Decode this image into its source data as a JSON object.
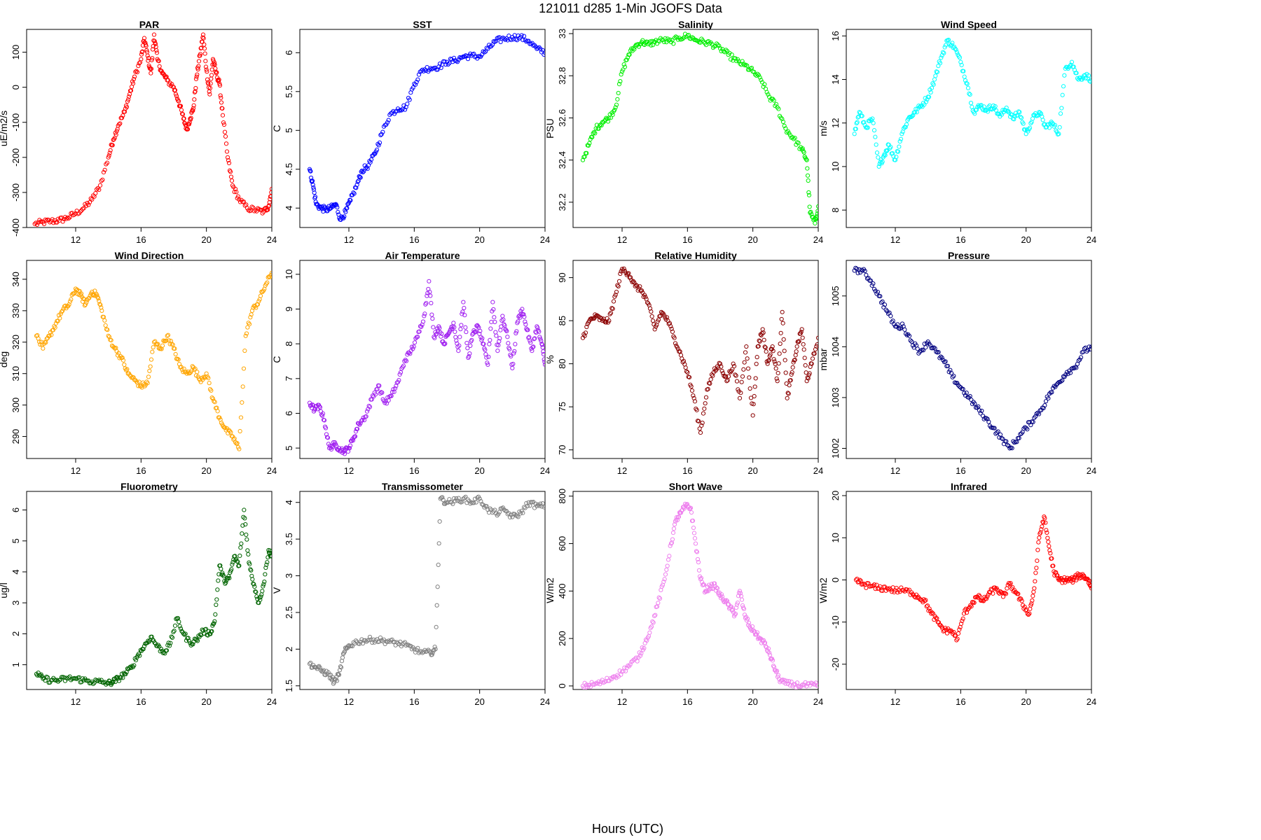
{
  "figure": {
    "title": "121011    d285    1-Min  JGOFS Data",
    "xlabel": "Hours (UTC)"
  },
  "chart_data": [
    {
      "type": "scatter",
      "title": "PAR",
      "ylabel": "uE/m2/s",
      "color": "#ff0000",
      "xlim": [
        9,
        24
      ],
      "ylim": [
        -400,
        165
      ],
      "xticks": [
        12,
        16,
        20,
        24
      ],
      "yticks": [
        -400,
        -300,
        -200,
        -100,
        0,
        100
      ],
      "x": [
        9.5,
        10,
        10.5,
        11,
        11.5,
        12,
        12.5,
        13,
        13.5,
        14,
        14.3,
        14.6,
        15,
        15.3,
        15.6,
        16,
        16.2,
        16.4,
        16.6,
        16.8,
        17,
        17.3,
        17.6,
        18,
        18.3,
        18.6,
        18.8,
        19,
        19.2,
        19.4,
        19.6,
        19.8,
        20,
        20.2,
        20.4,
        20.6,
        20.8,
        21,
        21.3,
        21.6,
        22,
        22.5,
        23,
        23.5,
        23.8,
        24
      ],
      "y": [
        -390,
        -385,
        -382,
        -380,
        -372,
        -360,
        -345,
        -320,
        -280,
        -200,
        -150,
        -110,
        -70,
        -20,
        30,
        80,
        140,
        90,
        40,
        150,
        80,
        40,
        20,
        0,
        -40,
        -90,
        -120,
        -90,
        -60,
        30,
        90,
        150,
        50,
        -20,
        80,
        40,
        10,
        -80,
        -200,
        -280,
        -320,
        -345,
        -350,
        -355,
        -340,
        -290
      ]
    },
    {
      "type": "scatter",
      "title": "SST",
      "ylabel": "C",
      "color": "#0000ff",
      "xlim": [
        9,
        24
      ],
      "ylim": [
        3.75,
        6.3
      ],
      "xticks": [
        12,
        16,
        20,
        24
      ],
      "yticks": [
        4.0,
        4.5,
        5.0,
        5.5,
        6.0
      ],
      "x": [
        9.6,
        9.8,
        10,
        10.3,
        10.6,
        10.9,
        11.2,
        11.5,
        11.8,
        12.1,
        12.5,
        12.8,
        13.2,
        13.6,
        14,
        14.5,
        15,
        15.5,
        16,
        16.5,
        17,
        17.5,
        18,
        18.5,
        19,
        19.5,
        20,
        20.5,
        21,
        21.5,
        22,
        22.5,
        23,
        23.5,
        24
      ],
      "y": [
        4.5,
        4.3,
        4.05,
        4.0,
        3.98,
        4.0,
        4.05,
        3.85,
        3.95,
        4.1,
        4.3,
        4.48,
        4.55,
        4.7,
        4.95,
        5.2,
        5.28,
        5.3,
        5.6,
        5.78,
        5.8,
        5.82,
        5.88,
        5.9,
        5.95,
        5.96,
        5.95,
        6.05,
        6.15,
        6.18,
        6.2,
        6.2,
        6.15,
        6.05,
        6.0
      ]
    },
    {
      "type": "scatter",
      "title": "Salinity",
      "ylabel": "PSU",
      "color": "#00ee00",
      "xlim": [
        9,
        24
      ],
      "ylim": [
        32.08,
        33.02
      ],
      "xticks": [
        12,
        16,
        20,
        24
      ],
      "yticks": [
        32.2,
        32.4,
        32.6,
        32.8,
        33.0
      ],
      "x": [
        9.6,
        10,
        10.4,
        10.8,
        11.2,
        11.6,
        12,
        12.4,
        12.8,
        13.2,
        13.6,
        14,
        14.5,
        15,
        15.5,
        16,
        16.5,
        17,
        17.5,
        18,
        18.5,
        19,
        19.5,
        20,
        20.5,
        21,
        21.5,
        22,
        22.5,
        23,
        23.3,
        23.5,
        23.8,
        24
      ],
      "y": [
        32.4,
        32.48,
        32.55,
        32.58,
        32.6,
        32.65,
        32.82,
        32.9,
        32.94,
        32.96,
        32.95,
        32.96,
        32.97,
        32.96,
        32.98,
        32.99,
        32.97,
        32.96,
        32.95,
        32.93,
        32.9,
        32.87,
        32.85,
        32.82,
        32.78,
        32.7,
        32.65,
        32.55,
        32.5,
        32.45,
        32.4,
        32.15,
        32.1,
        32.18
      ]
    },
    {
      "type": "scatter",
      "title": "Wind Speed",
      "ylabel": "m/s",
      "color": "#00ffff",
      "xlim": [
        9,
        24
      ],
      "ylim": [
        7.2,
        16.3
      ],
      "xticks": [
        12,
        16,
        20,
        24
      ],
      "yticks": [
        8,
        10,
        12,
        14,
        16
      ],
      "x": [
        9.5,
        9.8,
        10.2,
        10.6,
        11,
        11.3,
        11.6,
        12,
        12.4,
        12.8,
        13.2,
        13.6,
        14,
        14.4,
        14.8,
        15.2,
        15.6,
        16,
        16.4,
        16.8,
        17.2,
        17.6,
        18,
        18.4,
        18.8,
        19.2,
        19.6,
        20,
        20.4,
        20.8,
        21.2,
        21.6,
        22,
        22.4,
        22.8,
        23.2,
        23.6,
        24
      ],
      "y": [
        11.5,
        12.5,
        11.8,
        12.2,
        10,
        10.5,
        11,
        10.3,
        11.5,
        12.2,
        12.5,
        12.8,
        13.2,
        14,
        15,
        15.8,
        15.5,
        14.8,
        13.8,
        12.5,
        12.8,
        12.6,
        12.8,
        12.3,
        12.7,
        12.2,
        12.5,
        11.5,
        12.2,
        12.5,
        11.8,
        12.0,
        11.5,
        14.5,
        14.8,
        14,
        14.2,
        14.0
      ]
    },
    {
      "type": "scatter",
      "title": "Wind Direction",
      "ylabel": "deg",
      "color": "#ffa500",
      "xlim": [
        9,
        24
      ],
      "ylim": [
        283,
        346
      ],
      "xticks": [
        12,
        16,
        20,
        24
      ],
      "yticks": [
        290,
        300,
        310,
        320,
        330,
        340
      ],
      "x": [
        9.6,
        10,
        10.4,
        10.8,
        11.2,
        11.6,
        12,
        12.3,
        12.6,
        13,
        13.3,
        13.6,
        14,
        14.4,
        14.8,
        15.2,
        15.6,
        16,
        16.4,
        16.8,
        17.2,
        17.6,
        18,
        18.4,
        18.8,
        19.2,
        19.6,
        20,
        20.4,
        20.8,
        21.2,
        21.6,
        22,
        22.4,
        22.8,
        23.2,
        23.6,
        24
      ],
      "y": [
        322,
        318,
        322,
        326,
        330,
        332,
        337,
        335,
        332,
        336,
        335,
        330,
        322,
        318,
        315,
        310,
        308,
        306,
        307,
        320,
        318,
        322,
        318,
        312,
        310,
        312,
        308,
        310,
        302,
        296,
        292,
        290,
        286,
        322,
        330,
        333,
        338,
        342
      ]
    },
    {
      "type": "scatter",
      "title": "Air Temperature",
      "ylabel": "C",
      "color": "#a020f0",
      "xlim": [
        9,
        24
      ],
      "ylim": [
        4.7,
        10.4
      ],
      "xticks": [
        12,
        16,
        20,
        24
      ],
      "yticks": [
        5,
        6,
        7,
        8,
        9,
        10
      ],
      "x": [
        9.6,
        9.9,
        10.2,
        10.5,
        10.8,
        11.1,
        11.4,
        11.7,
        12,
        12.3,
        12.6,
        13,
        13.4,
        13.8,
        14.2,
        14.6,
        15,
        15.4,
        15.8,
        16.2,
        16.6,
        16.9,
        17.2,
        17.5,
        17.8,
        18.1,
        18.4,
        18.7,
        19,
        19.3,
        19.6,
        19.9,
        20.2,
        20.5,
        20.8,
        21.1,
        21.4,
        21.7,
        22,
        22.3,
        22.6,
        22.9,
        23.2,
        23.5,
        23.8,
        24
      ],
      "y": [
        6.3,
        6.1,
        6.2,
        5.8,
        5.0,
        5.1,
        5.0,
        4.9,
        5.0,
        5.3,
        5.7,
        5.9,
        6.4,
        6.8,
        6.3,
        6.5,
        6.9,
        7.5,
        7.8,
        8.2,
        8.8,
        9.8,
        8.2,
        8.5,
        8.0,
        8.3,
        8.6,
        7.8,
        9.2,
        7.6,
        8.3,
        8.5,
        8.0,
        7.4,
        9.2,
        7.8,
        8.8,
        8.2,
        7.3,
        8.6,
        9.0,
        8.4,
        7.8,
        8.5,
        8.0,
        7.4
      ]
    },
    {
      "type": "scatter",
      "title": "Relative Humidity",
      "ylabel": "%",
      "color": "#8b0000",
      "xlim": [
        9,
        24
      ],
      "ylim": [
        69,
        92
      ],
      "xticks": [
        12,
        16,
        20,
        24
      ],
      "yticks": [
        70,
        75,
        80,
        85,
        90
      ],
      "x": [
        9.6,
        10,
        10.4,
        10.8,
        11.2,
        11.6,
        12,
        12.4,
        12.8,
        13.2,
        13.6,
        14,
        14.4,
        14.8,
        15.2,
        15.6,
        16,
        16.4,
        16.8,
        17.2,
        17.6,
        18,
        18.4,
        18.8,
        19.2,
        19.6,
        20,
        20.3,
        20.6,
        20.9,
        21.2,
        21.5,
        21.8,
        22.1,
        22.4,
        22.7,
        23,
        23.3,
        23.6,
        24
      ],
      "y": [
        83,
        85,
        85.5,
        85,
        85,
        88,
        91,
        90.5,
        89,
        88.5,
        87,
        84,
        86,
        85,
        83,
        81,
        79,
        76,
        72,
        77,
        79,
        80,
        78,
        80,
        76,
        82,
        74,
        82,
        84,
        80,
        82,
        78,
        86,
        76,
        79,
        82,
        84,
        78,
        80,
        83
      ]
    },
    {
      "type": "scatter",
      "title": "Pressure",
      "ylabel": "mbar",
      "color": "#000080",
      "xlim": [
        9,
        24
      ],
      "ylim": [
        1001.8,
        1005.7
      ],
      "xticks": [
        12,
        16,
        20,
        24
      ],
      "yticks": [
        1002,
        1003,
        1004,
        1005
      ],
      "x": [
        9.5,
        10,
        10.5,
        11,
        11.5,
        12,
        12.5,
        13,
        13.5,
        14,
        14.5,
        15,
        15.5,
        16,
        16.5,
        17,
        17.5,
        18,
        18.5,
        19,
        19.5,
        20,
        20.5,
        21,
        21.5,
        22,
        22.5,
        23,
        23.5,
        24
      ],
      "y": [
        1005.5,
        1005.5,
        1005.3,
        1005.0,
        1004.7,
        1004.4,
        1004.4,
        1004.1,
        1003.9,
        1004.1,
        1003.9,
        1003.7,
        1003.4,
        1003.2,
        1003.0,
        1002.8,
        1002.6,
        1002.4,
        1002.2,
        1002.0,
        1002.2,
        1002.4,
        1002.6,
        1002.8,
        1003.1,
        1003.3,
        1003.5,
        1003.6,
        1003.9,
        1004.0
      ]
    },
    {
      "type": "scatter",
      "title": "Fluorometry",
      "ylabel": "ug/l",
      "color": "#006400",
      "xlim": [
        9,
        24
      ],
      "ylim": [
        0.2,
        6.6
      ],
      "xticks": [
        12,
        16,
        20,
        24
      ],
      "yticks": [
        1,
        2,
        3,
        4,
        5,
        6
      ],
      "x": [
        9.6,
        10,
        10.5,
        11,
        11.5,
        12,
        12.5,
        13,
        13.5,
        14,
        14.3,
        14.6,
        15,
        15.4,
        15.8,
        16.2,
        16.6,
        17,
        17.4,
        17.8,
        18.2,
        18.6,
        19,
        19.4,
        19.8,
        20.2,
        20.5,
        20.8,
        21.1,
        21.4,
        21.7,
        22,
        22.3,
        22.6,
        22.9,
        23.2,
        23.5,
        23.8,
        24
      ],
      "y": [
        0.7,
        0.55,
        0.5,
        0.5,
        0.55,
        0.55,
        0.5,
        0.45,
        0.45,
        0.4,
        0.45,
        0.55,
        0.7,
        0.9,
        1.3,
        1.6,
        1.9,
        1.6,
        1.4,
        1.7,
        2.5,
        2.0,
        1.7,
        1.8,
        2.1,
        2.0,
        2.4,
        4.2,
        3.7,
        3.8,
        4.5,
        4.2,
        6.0,
        4.3,
        3.6,
        3.0,
        3.6,
        4.7,
        4.5
      ]
    },
    {
      "type": "scatter",
      "title": "Transmissometer",
      "ylabel": "V",
      "color": "#808080",
      "xlim": [
        9,
        24
      ],
      "ylim": [
        1.45,
        4.15
      ],
      "xticks": [
        12,
        16,
        20,
        24
      ],
      "yticks": [
        1.5,
        2.0,
        2.5,
        3.0,
        3.5,
        4.0
      ],
      "x": [
        9.6,
        10,
        10.4,
        10.8,
        11.1,
        11.4,
        11.7,
        12,
        12.5,
        13,
        13.5,
        14,
        14.5,
        15,
        15.5,
        16,
        16.5,
        17,
        17.3,
        17.6,
        18,
        18.5,
        19,
        19.5,
        20,
        20.5,
        21,
        21.5,
        22,
        22.5,
        23,
        23.5,
        24
      ],
      "y": [
        1.8,
        1.75,
        1.7,
        1.65,
        1.55,
        1.65,
        1.95,
        2.05,
        2.1,
        2.12,
        2.13,
        2.12,
        2.1,
        2.08,
        2.05,
        2.0,
        1.95,
        1.95,
        2.0,
        4.05,
        4.0,
        4.02,
        4.05,
        4.0,
        4.05,
        3.9,
        3.85,
        3.9,
        3.8,
        3.85,
        4.0,
        3.95,
        3.95
      ]
    },
    {
      "type": "scatter",
      "title": "Short Wave",
      "ylabel": "W/m2",
      "color": "#ee82ee",
      "xlim": [
        9,
        24
      ],
      "ylim": [
        -15,
        820
      ],
      "xticks": [
        12,
        16,
        20,
        24
      ],
      "yticks": [
        0,
        200,
        400,
        600,
        800
      ],
      "x": [
        9.6,
        10,
        10.5,
        11,
        11.5,
        12,
        12.5,
        13,
        13.4,
        13.8,
        14.2,
        14.6,
        15,
        15.3,
        15.6,
        15.9,
        16.2,
        16.5,
        16.8,
        17.1,
        17.4,
        17.7,
        18,
        18.3,
        18.6,
        18.9,
        19.2,
        19.5,
        19.8,
        20.1,
        20.4,
        20.7,
        21,
        21.3,
        21.6,
        22,
        22.5,
        23,
        23.5,
        24
      ],
      "y": [
        0,
        3,
        10,
        20,
        40,
        60,
        90,
        120,
        180,
        250,
        350,
        450,
        600,
        700,
        730,
        760,
        750,
        600,
        450,
        400,
        420,
        420,
        380,
        360,
        330,
        300,
        400,
        300,
        250,
        230,
        200,
        180,
        140,
        80,
        30,
        10,
        5,
        3,
        2,
        1
      ]
    },
    {
      "type": "scatter",
      "title": "Infrared",
      "ylabel": "W/m2",
      "color": "#ff0000",
      "xlim": [
        9,
        24
      ],
      "ylim": [
        -26,
        21
      ],
      "xticks": [
        12,
        16,
        20,
        24
      ],
      "yticks": [
        -20,
        -10,
        0,
        10,
        20
      ],
      "x": [
        9.6,
        10,
        10.5,
        11,
        11.5,
        12,
        12.5,
        13,
        13.4,
        13.8,
        14.2,
        14.6,
        15,
        15.4,
        15.8,
        16.2,
        16.6,
        17,
        17.4,
        17.8,
        18.2,
        18.6,
        19,
        19.4,
        19.8,
        20.2,
        20.5,
        20.8,
        21.1,
        21.4,
        21.7,
        22,
        22.3,
        22.6,
        22.9,
        23.2,
        23.5,
        23.8,
        24
      ],
      "y": [
        0,
        -1,
        -1.5,
        -2,
        -2,
        -2.5,
        -2.5,
        -3,
        -4,
        -5,
        -8,
        -10,
        -12,
        -12,
        -14,
        -8,
        -6,
        -4,
        -5,
        -3,
        -2,
        -4,
        -1,
        -3,
        -6,
        -8,
        -2,
        10,
        15,
        8,
        2,
        0,
        0,
        0,
        0,
        1,
        1,
        0,
        -2
      ]
    }
  ]
}
